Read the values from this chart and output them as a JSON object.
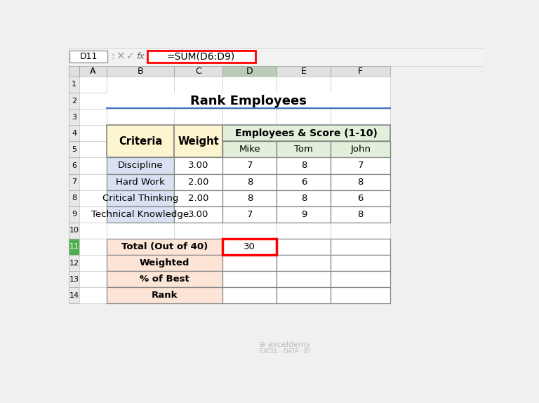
{
  "title": "Rank Employees",
  "formula_bar_text": "=SUM(D6:D9)",
  "cell_ref": "D11",
  "col_headers": [
    "A",
    "B",
    "C",
    "D",
    "E",
    "F"
  ],
  "row_numbers": [
    "1",
    "2",
    "3",
    "4",
    "5",
    "6",
    "7",
    "8",
    "9",
    "10",
    "11",
    "12",
    "13",
    "14"
  ],
  "criteria": [
    "Discipline",
    "Hard Work",
    "Critical Thinking",
    "Technical Knowledge"
  ],
  "weights": [
    "3.00",
    "2.00",
    "2.00",
    "3.00"
  ],
  "mike_scores": [
    "7",
    "8",
    "8",
    "7"
  ],
  "tom_scores": [
    "8",
    "6",
    "8",
    "9"
  ],
  "john_scores": [
    "7",
    "8",
    "6",
    "8"
  ],
  "bottom_labels": [
    "Total (Out of 40)",
    "Weighted",
    "% of Best",
    "Rank"
  ],
  "total_value": "30",
  "bg_color": "#f0f0f0",
  "toolbar_bg": "#f2f2f2",
  "col_header_bg": "#e0e0e0",
  "active_col_bg": "#b8ccb8",
  "row_num_bg": "#e8e8e8",
  "active_row_num_bg": "#4cae4c",
  "criteria_header_bg": "#fdf5d0",
  "criteria_cell_bg": "#d9e1f2",
  "emp_header_bg": "#e2efda",
  "white": "#ffffff",
  "bottom_label_bg": "#fce4d6",
  "red": "#ff0000",
  "blue_line": "#4472c4",
  "table_border": "#888888",
  "watermark_color": "#bbbbbb",
  "formula_box_color": "#ff0000",
  "cell_border": "#cccccc",
  "dark_border": "#888888"
}
